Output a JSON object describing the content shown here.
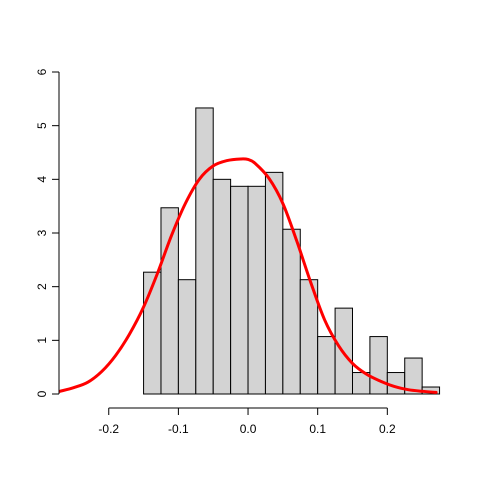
{
  "chart_data": {
    "type": "bar",
    "subtype": "histogram-with-density",
    "title": "",
    "xlabel": "",
    "ylabel": "",
    "xlim": [
      -0.27,
      0.29
    ],
    "ylim": [
      0,
      6
    ],
    "grid": false,
    "x_tick_labels": [
      "-0.2",
      "-0.1",
      "0.0",
      "0.1",
      "0.2"
    ],
    "x_ticks": [
      -0.2,
      -0.1,
      0.0,
      0.1,
      0.2
    ],
    "y_tick_labels": [
      "0",
      "1",
      "2",
      "3",
      "4",
      "5",
      "6"
    ],
    "y_ticks": [
      0,
      1,
      2,
      3,
      4,
      5,
      6
    ],
    "bar_fill": "#d3d3d3",
    "bar_stroke": "#000000",
    "bins": [
      {
        "x0": -0.15,
        "x1": -0.125,
        "density": 2.27
      },
      {
        "x0": -0.125,
        "x1": -0.1,
        "density": 3.47
      },
      {
        "x0": -0.1,
        "x1": -0.075,
        "density": 2.13
      },
      {
        "x0": -0.075,
        "x1": -0.05,
        "density": 5.33
      },
      {
        "x0": -0.05,
        "x1": -0.025,
        "density": 4.0
      },
      {
        "x0": -0.025,
        "x1": 0.0,
        "density": 3.87
      },
      {
        "x0": 0.0,
        "x1": 0.025,
        "density": 3.87
      },
      {
        "x0": 0.025,
        "x1": 0.05,
        "density": 4.13
      },
      {
        "x0": 0.05,
        "x1": 0.075,
        "density": 3.07
      },
      {
        "x0": 0.075,
        "x1": 0.1,
        "density": 2.13
      },
      {
        "x0": 0.1,
        "x1": 0.125,
        "density": 1.07
      },
      {
        "x0": 0.125,
        "x1": 0.15,
        "density": 1.6
      },
      {
        "x0": 0.15,
        "x1": 0.175,
        "density": 0.4
      },
      {
        "x0": 0.175,
        "x1": 0.2,
        "density": 1.07
      },
      {
        "x0": 0.2,
        "x1": 0.225,
        "density": 0.4
      },
      {
        "x0": 0.225,
        "x1": 0.25,
        "density": 0.67
      },
      {
        "x0": 0.25,
        "x1": 0.275,
        "density": 0.13
      }
    ],
    "density_curve": {
      "color": "#ff0000",
      "x": [
        -0.27,
        -0.25,
        -0.23,
        -0.21,
        -0.19,
        -0.17,
        -0.15,
        -0.13,
        -0.11,
        -0.09,
        -0.07,
        -0.05,
        -0.03,
        -0.01,
        0.0,
        0.01,
        0.03,
        0.05,
        0.07,
        0.09,
        0.11,
        0.13,
        0.15,
        0.17,
        0.19,
        0.21,
        0.23,
        0.25,
        0.27
      ],
      "y": [
        0.05,
        0.12,
        0.22,
        0.42,
        0.72,
        1.12,
        1.62,
        2.25,
        2.95,
        3.55,
        4.0,
        4.25,
        4.35,
        4.38,
        4.37,
        4.3,
        4.02,
        3.55,
        2.85,
        2.08,
        1.38,
        0.9,
        0.57,
        0.37,
        0.24,
        0.14,
        0.08,
        0.05,
        0.03
      ]
    }
  }
}
